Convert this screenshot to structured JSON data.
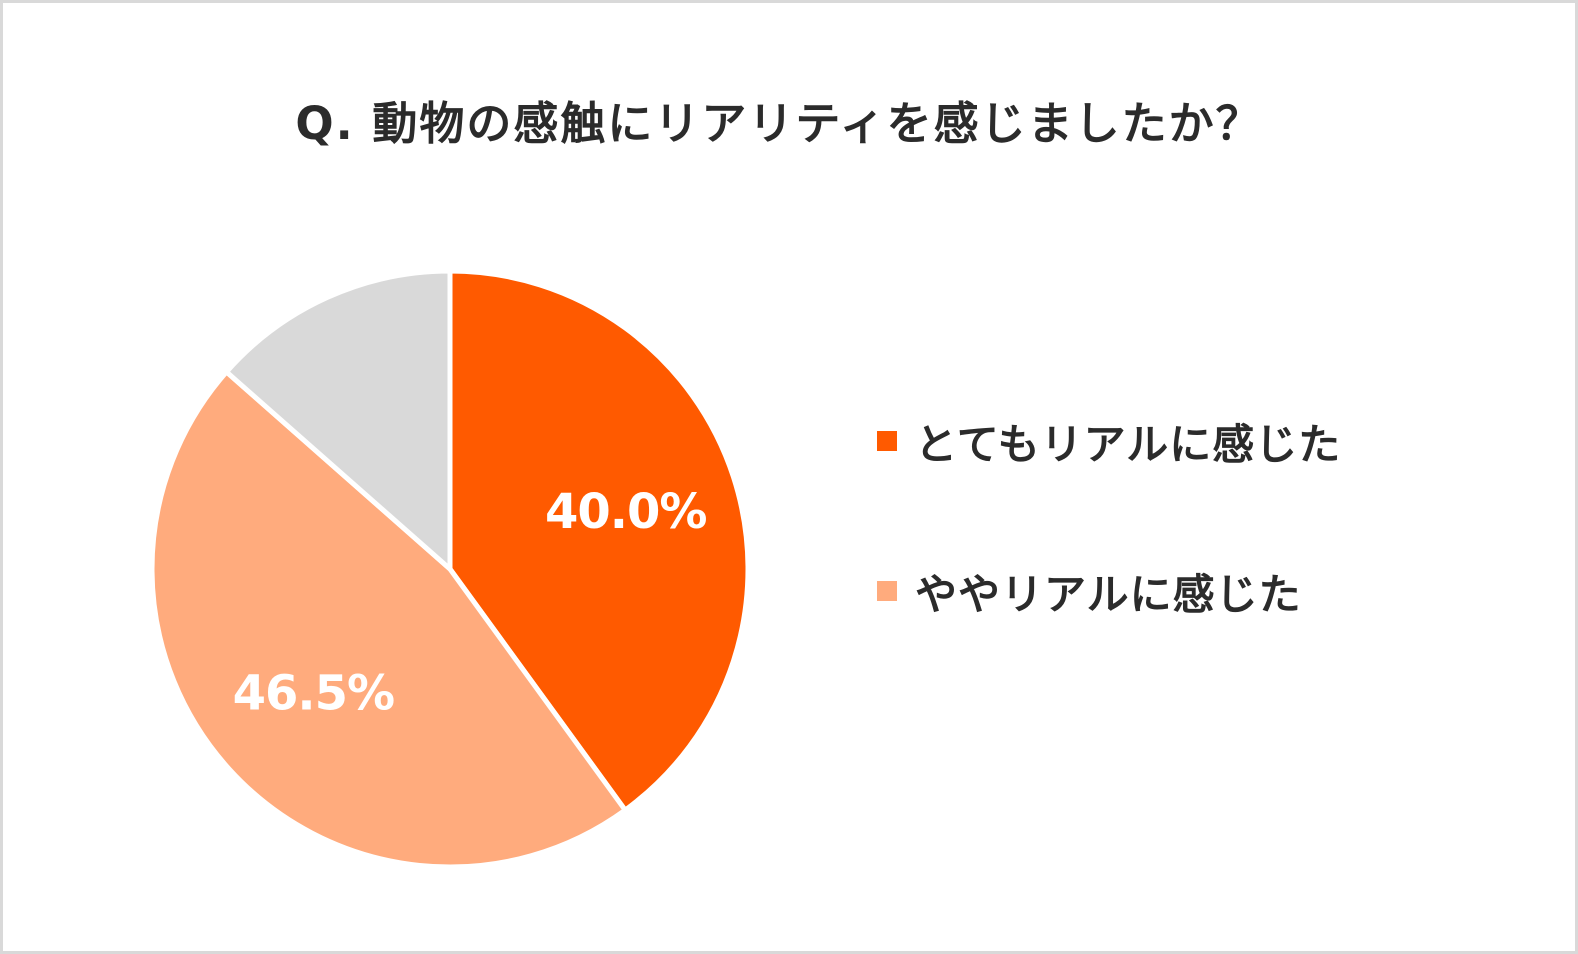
{
  "chart_data": {
    "type": "pie",
    "title": "Q. 動物の感触にリアリティを感じましたか？",
    "slices": [
      {
        "name": "とてもリアルに感じた",
        "value": 40.0,
        "label": "40.0%",
        "color": "#ff5a00",
        "in_legend": true
      },
      {
        "name": "ややリアルに感じた",
        "value": 46.5,
        "label": "46.5%",
        "color": "#ffab7d",
        "in_legend": true
      },
      {
        "name": "",
        "value": 13.5,
        "label": "",
        "color": "#d9d9d9",
        "in_legend": false
      }
    ],
    "start_angle": "12 o'clock",
    "direction": "clockwise",
    "legend_position": "right"
  }
}
